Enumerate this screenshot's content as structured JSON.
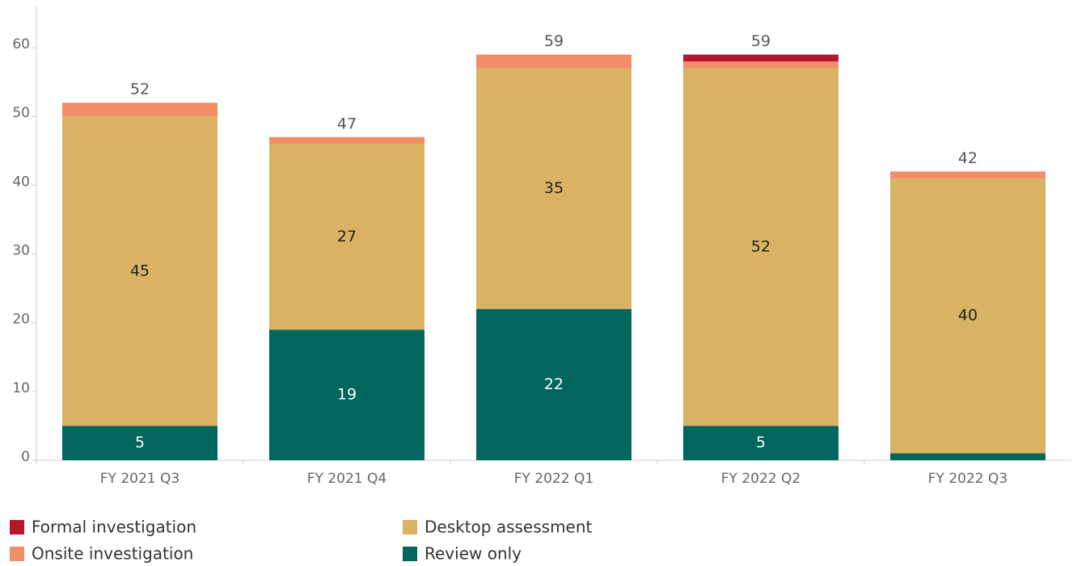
{
  "chart_data": {
    "type": "stacked_bar",
    "categories": [
      "FY 2021 Q3",
      "FY 2021 Q4",
      "FY 2022 Q1",
      "FY 2022 Q2",
      "FY 2022 Q3"
    ],
    "series": [
      {
        "name": "Review only",
        "color": "#00665e",
        "values": [
          5,
          19,
          22,
          5,
          1
        ]
      },
      {
        "name": "Desktop assessment",
        "color": "#d9b263",
        "values": [
          45,
          27,
          35,
          52,
          40
        ]
      },
      {
        "name": "Onsite investigation",
        "color": "#f28e65",
        "values": [
          2,
          1,
          2,
          1,
          1
        ]
      },
      {
        "name": "Formal investigation",
        "color": "#b5172f",
        "values": [
          0,
          0,
          0,
          1,
          0
        ]
      }
    ],
    "totals": [
      52,
      47,
      59,
      59,
      42
    ],
    "ylim": [
      0,
      66
    ],
    "yticks": [
      0,
      10,
      20,
      30,
      40,
      50,
      60
    ],
    "grid": false
  }
}
